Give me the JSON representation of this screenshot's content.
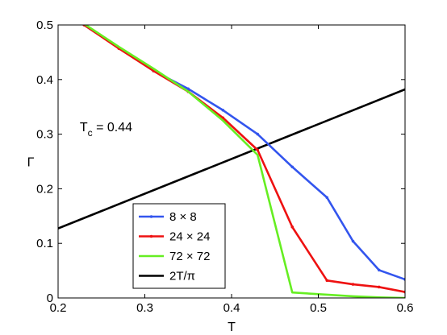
{
  "chart_data": {
    "type": "line",
    "title": "",
    "xlabel": "T",
    "ylabel": "Γ",
    "xlim": [
      0.2,
      0.6
    ],
    "ylim": [
      0,
      0.5
    ],
    "xticks": [
      0.2,
      0.3,
      0.4,
      0.5,
      0.6
    ],
    "yticks": [
      0,
      0.1,
      0.2,
      0.3,
      0.4,
      0.5
    ],
    "xtick_labels": [
      "0.2",
      "0.3",
      "0.4",
      "0.5",
      "0.6"
    ],
    "ytick_labels": [
      "0",
      "0.1",
      "0.2",
      "0.3",
      "0.4",
      "0.5"
    ],
    "grid": false,
    "legend": "bottom-left",
    "annotation": {
      "base": "T",
      "sub": "c",
      "rest": " = 0.44",
      "x": 0.225,
      "y": 0.305
    },
    "series": [
      {
        "name": "8 × 8",
        "color": "#3355ee",
        "marker": true,
        "x": [
          0.23,
          0.27,
          0.31,
          0.35,
          0.39,
          0.43,
          0.47,
          0.51,
          0.54,
          0.57,
          0.6
        ],
        "y": [
          0.5,
          0.458,
          0.416,
          0.383,
          0.344,
          0.3,
          0.24,
          0.184,
          0.104,
          0.051,
          0.034
        ]
      },
      {
        "name": "24 × 24",
        "color": "#ee1111",
        "marker": true,
        "x": [
          0.23,
          0.27,
          0.31,
          0.35,
          0.39,
          0.43,
          0.47,
          0.51,
          0.54,
          0.57,
          0.6
        ],
        "y": [
          0.5,
          0.457,
          0.416,
          0.378,
          0.33,
          0.271,
          0.13,
          0.032,
          0.025,
          0.02,
          0.011
        ]
      },
      {
        "name": "72 × 72",
        "color": "#66ee22",
        "marker": false,
        "x": [
          0.23,
          0.27,
          0.31,
          0.35,
          0.39,
          0.43,
          0.47,
          0.51,
          0.54,
          0.57,
          0.6
        ],
        "y": [
          0.502,
          0.46,
          0.42,
          0.378,
          0.325,
          0.262,
          0.01,
          0.006,
          0.003,
          0.001,
          0.0
        ]
      },
      {
        "name": "2T/π",
        "color": "#000000",
        "marker": false,
        "x": [
          0.2,
          0.6
        ],
        "y": [
          0.1273,
          0.382
        ]
      }
    ]
  }
}
